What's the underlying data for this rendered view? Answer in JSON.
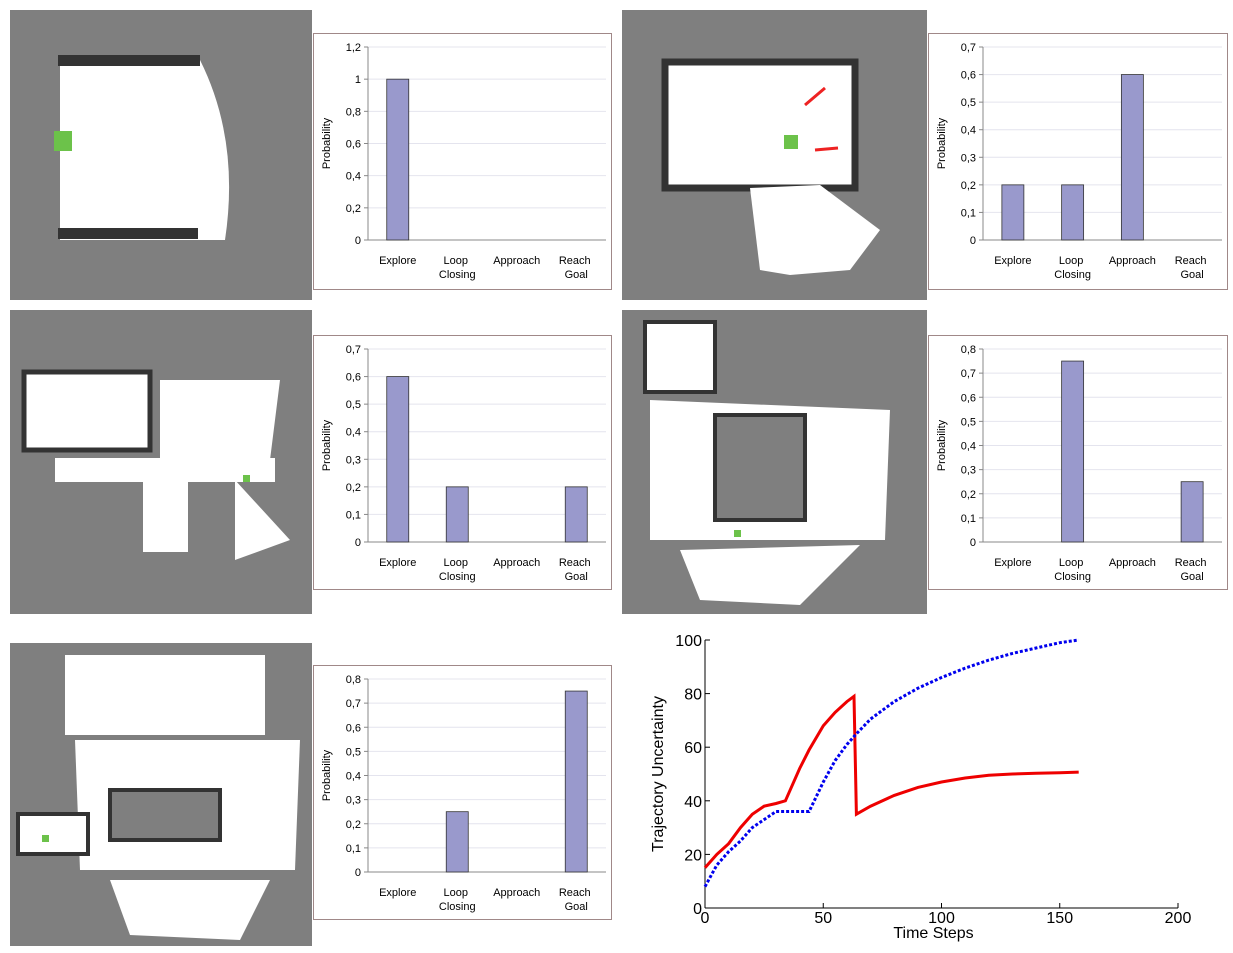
{
  "chart_data": [
    {
      "type": "bar",
      "categories": [
        "Explore",
        "Loop Closing",
        "Approach",
        "Reach Goal"
      ],
      "values": [
        1,
        0,
        0,
        0
      ],
      "color": "#9999cc",
      "y_label": "Probability",
      "ylim": [
        0,
        1.2
      ],
      "yticks": [
        0,
        {
          "value": 0.2,
          "label": "0,2"
        },
        {
          "value": 0.4,
          "label": "0,4"
        },
        {
          "value": 0.6,
          "label": "0,6"
        },
        {
          "value": 0.8,
          "label": "0,8"
        },
        1,
        {
          "value": 1.2,
          "label": "1,2"
        }
      ],
      "grid": true
    },
    {
      "type": "bar",
      "categories": [
        "Explore",
        "Loop Closing",
        "Approach",
        "Reach Goal"
      ],
      "values": [
        0.2,
        0.2,
        0.6,
        0
      ],
      "color": "#9999cc",
      "y_label": "Probability",
      "ylim": [
        0,
        0.7
      ],
      "yticks": [
        0,
        {
          "value": 0.1,
          "label": "0,1"
        },
        {
          "value": 0.2,
          "label": "0,2"
        },
        {
          "value": 0.3,
          "label": "0,3"
        },
        {
          "value": 0.4,
          "label": "0,4"
        },
        {
          "value": 0.5,
          "label": "0,5"
        },
        {
          "value": 0.6,
          "label": "0,6"
        },
        {
          "value": 0.7,
          "label": "0,7"
        }
      ],
      "grid": true
    },
    {
      "type": "bar",
      "categories": [
        "Explore",
        "Loop Closing",
        "Approach",
        "Reach Goal"
      ],
      "values": [
        0.6,
        0.2,
        0,
        0.2
      ],
      "color": "#9999cc",
      "y_label": "Probability",
      "ylim": [
        0,
        0.7
      ],
      "yticks": [
        0,
        {
          "value": 0.1,
          "label": "0,1"
        },
        {
          "value": 0.2,
          "label": "0,2"
        },
        {
          "value": 0.3,
          "label": "0,3"
        },
        {
          "value": 0.4,
          "label": "0,4"
        },
        {
          "value": 0.5,
          "label": "0,5"
        },
        {
          "value": 0.6,
          "label": "0,6"
        },
        {
          "value": 0.7,
          "label": "0,7"
        }
      ],
      "grid": true
    },
    {
      "type": "bar",
      "categories": [
        "Explore",
        "Loop Closing",
        "Approach",
        "Reach Goal"
      ],
      "values": [
        0,
        0.75,
        0,
        0.25
      ],
      "color": "#9999cc",
      "y_label": "Probability",
      "ylim": [
        0,
        0.8
      ],
      "yticks": [
        0,
        {
          "value": 0.1,
          "label": "0,1"
        },
        {
          "value": 0.2,
          "label": "0,2"
        },
        {
          "value": 0.3,
          "label": "0,3"
        },
        {
          "value": 0.4,
          "label": "0,4"
        },
        {
          "value": 0.5,
          "label": "0,5"
        },
        {
          "value": 0.6,
          "label": "0,6"
        },
        {
          "value": 0.7,
          "label": "0,7"
        },
        {
          "value": 0.8,
          "label": "0,8"
        }
      ],
      "grid": true
    },
    {
      "type": "bar",
      "categories": [
        "Explore",
        "Loop Closing",
        "Approach",
        "Reach Goal"
      ],
      "values": [
        0,
        0.25,
        0,
        0.75
      ],
      "color": "#9999cc",
      "y_label": "Probability",
      "ylim": [
        0,
        0.8
      ],
      "yticks": [
        0,
        {
          "value": 0.1,
          "label": "0,1"
        },
        {
          "value": 0.2,
          "label": "0,2"
        },
        {
          "value": 0.3,
          "label": "0,3"
        },
        {
          "value": 0.4,
          "label": "0,4"
        },
        {
          "value": 0.5,
          "label": "0,5"
        },
        {
          "value": 0.6,
          "label": "0,6"
        },
        {
          "value": 0.7,
          "label": "0,7"
        },
        {
          "value": 0.8,
          "label": "0,8"
        }
      ],
      "grid": true
    },
    {
      "type": "line",
      "x_label": "Time Steps",
      "y_label": "Trajectory Uncertainty",
      "x": [
        0,
        5,
        10,
        15,
        20,
        25,
        30,
        34,
        40,
        44,
        50,
        55,
        60,
        63,
        64,
        70,
        80,
        90,
        100,
        110,
        120,
        130,
        140,
        150,
        158
      ],
      "series": [
        {
          "color": "#ee0000",
          "style": "solid",
          "values": [
            15,
            20,
            24,
            30,
            35,
            38,
            39,
            40,
            52,
            59,
            68,
            73,
            77,
            79,
            35,
            38,
            42,
            45,
            47,
            48.5,
            49.5,
            50,
            50.3,
            50.5,
            50.7
          ]
        },
        {
          "color": "#0000ee",
          "style": "dotted",
          "values": [
            8,
            16,
            21,
            25,
            30,
            33,
            36,
            36,
            36,
            36,
            47,
            55,
            61,
            64,
            65,
            70.5,
            77,
            82,
            86,
            89.5,
            92.5,
            95,
            97,
            99,
            100
          ]
        }
      ],
      "xlim": [
        0,
        200
      ],
      "ylim": [
        0,
        100
      ],
      "xticks": [
        0,
        50,
        100,
        150,
        200
      ],
      "yticks": [
        0,
        20,
        40,
        60,
        80,
        100
      ],
      "grid": false
    }
  ]
}
